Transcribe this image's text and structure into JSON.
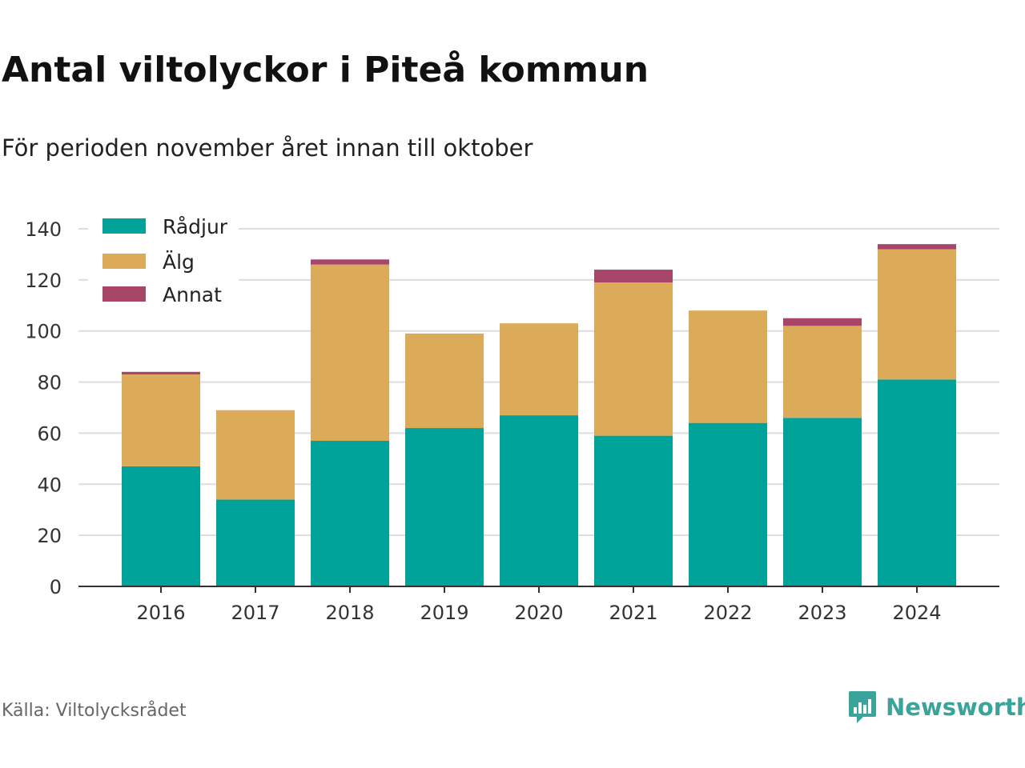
{
  "header": {
    "title": "Antal viltolyckor i Piteå kommun",
    "subtitle": "För perioden november året innan till oktober"
  },
  "footer": {
    "source": "Källa: Viltolycksrådet",
    "brand": "Newsworthy",
    "brand_color": "#3aa39a"
  },
  "chart_data": {
    "type": "bar",
    "stacked": true,
    "categories": [
      "2016",
      "2017",
      "2018",
      "2019",
      "2020",
      "2021",
      "2022",
      "2023",
      "2024"
    ],
    "series": [
      {
        "name": "Rådjur",
        "color": "#00a39a",
        "values": [
          47,
          34,
          57,
          62,
          67,
          59,
          64,
          66,
          81
        ]
      },
      {
        "name": "Älg",
        "color": "#dbab5a",
        "values": [
          36,
          35,
          69,
          37,
          36,
          60,
          44,
          36,
          51
        ]
      },
      {
        "name": "Annat",
        "color": "#a8466a",
        "values": [
          1,
          0,
          2,
          0,
          0,
          5,
          0,
          3,
          2
        ]
      }
    ],
    "ylim": [
      0,
      140
    ],
    "yticks": [
      0,
      20,
      40,
      60,
      80,
      100,
      120,
      140
    ],
    "grid": true,
    "legend": "top-left"
  }
}
